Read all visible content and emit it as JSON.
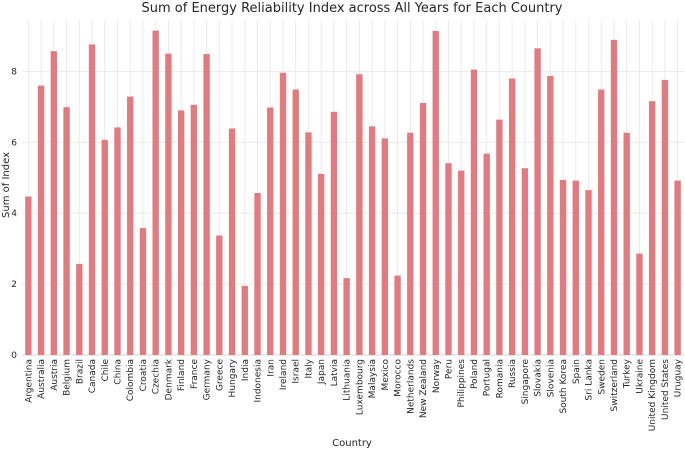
{
  "chart_data": {
    "type": "bar",
    "title": "Sum of Energy Reliability Index across All Years for Each Country",
    "xlabel": "Country",
    "ylabel": "Sum of Index",
    "ylim": [
      0,
      9.45
    ],
    "yticks": [
      0,
      2,
      4,
      6,
      8
    ],
    "grid": true,
    "bar_color": "#e17b80",
    "categories": [
      "Argentina",
      "Australia",
      "Austria",
      "Belgium",
      "Brazil",
      "Canada",
      "Chile",
      "China",
      "Colombia",
      "Croatia",
      "Czechia",
      "Denmark",
      "Finland",
      "France",
      "Germany",
      "Greece",
      "Hungary",
      "India",
      "Indonesia",
      "Iran",
      "Ireland",
      "Israel",
      "Italy",
      "Japan",
      "Latvia",
      "Lithuania",
      "Luxembourg",
      "Malaysia",
      "Mexico",
      "Morocco",
      "Netherlands",
      "New Zealand",
      "Norway",
      "Peru",
      "Philippines",
      "Poland",
      "Portugal",
      "Romania",
      "Russia",
      "Singapore",
      "Slovakia",
      "Slovenia",
      "South Korea",
      "Spain",
      "Sri Lanka",
      "Sweden",
      "Switzerland",
      "Turkey",
      "Ukraine",
      "United Kingdom",
      "United States",
      "Uruguay"
    ],
    "values": [
      4.47,
      7.6,
      8.57,
      6.99,
      2.57,
      8.76,
      6.07,
      6.42,
      7.29,
      3.58,
      9.15,
      8.5,
      6.9,
      7.06,
      8.49,
      3.37,
      6.39,
      1.95,
      4.57,
      6.98,
      7.96,
      7.49,
      6.28,
      5.11,
      6.86,
      2.17,
      7.92,
      6.45,
      6.11,
      2.24,
      6.27,
      7.11,
      9.14,
      5.41,
      5.2,
      8.05,
      5.68,
      6.64,
      7.8,
      5.27,
      8.65,
      7.87,
      4.94,
      4.92,
      4.65,
      7.49,
      8.89,
      6.27,
      2.86,
      7.16,
      7.76,
      4.92
    ]
  }
}
